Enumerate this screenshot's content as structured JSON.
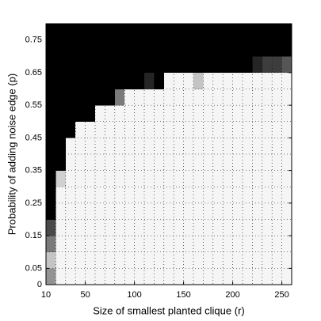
{
  "chart_data": {
    "type": "heatmap",
    "xlabel": "Size of smallest planted clique (r)",
    "ylabel": "Probability of adding noise edge (p)",
    "colormap": "gray",
    "xbins": [
      10,
      20,
      30,
      40,
      50,
      60,
      70,
      80,
      90,
      100,
      110,
      120,
      130,
      140,
      150,
      160,
      170,
      180,
      190,
      200,
      210,
      220,
      230,
      240,
      250,
      260
    ],
    "ybins": [
      0,
      0.05,
      0.1,
      0.15,
      0.2,
      0.25,
      0.3,
      0.35,
      0.4,
      0.45,
      0.5,
      0.55,
      0.6,
      0.65,
      0.7,
      0.75,
      0.8
    ],
    "values": [
      [
        0.6,
        1,
        1,
        1,
        1,
        1,
        1,
        1,
        1,
        1,
        1,
        1,
        1,
        1,
        1,
        1,
        1,
        1,
        1,
        1,
        1,
        1,
        1,
        1,
        1
      ],
      [
        0.8,
        1,
        1,
        1,
        1,
        1,
        1,
        1,
        1,
        1,
        1,
        1,
        1,
        1,
        1,
        1,
        1,
        1,
        1,
        1,
        1,
        1,
        1,
        1,
        1
      ],
      [
        0.5,
        1,
        1,
        1,
        1,
        1,
        1,
        1,
        1,
        1,
        1,
        1,
        1,
        1,
        1,
        1,
        1,
        1,
        1,
        1,
        1,
        1,
        1,
        1,
        1
      ],
      [
        0.3,
        1,
        1,
        1,
        1,
        1,
        1,
        1,
        1,
        1,
        1,
        1,
        1,
        1,
        1,
        1,
        1,
        1,
        1,
        1,
        1,
        1,
        1,
        1,
        1
      ],
      [
        0,
        1,
        1,
        1,
        1,
        1,
        1,
        1,
        1,
        1,
        1,
        1,
        1,
        1,
        1,
        1,
        1,
        1,
        1,
        1,
        1,
        1,
        1,
        1,
        1
      ],
      [
        0,
        1,
        1,
        1,
        1,
        1,
        1,
        1,
        1,
        1,
        1,
        1,
        1,
        1,
        1,
        1,
        1,
        1,
        1,
        1,
        1,
        1,
        1,
        1,
        1
      ],
      [
        0,
        0.85,
        1,
        1,
        1,
        1,
        1,
        1,
        1,
        1,
        1,
        1,
        1,
        1,
        1,
        1,
        1,
        1,
        1,
        1,
        1,
        1,
        1,
        1,
        1
      ],
      [
        0,
        0,
        1,
        1,
        1,
        1,
        1,
        1,
        1,
        1,
        1,
        1,
        1,
        1,
        1,
        1,
        1,
        1,
        1,
        1,
        1,
        1,
        1,
        1,
        1
      ],
      [
        0,
        0,
        1,
        1,
        1,
        1,
        1,
        1,
        1,
        1,
        1,
        1,
        1,
        1,
        1,
        1,
        1,
        1,
        1,
        1,
        1,
        1,
        1,
        1,
        1
      ],
      [
        0,
        0,
        0,
        1,
        1,
        1,
        1,
        1,
        1,
        1,
        1,
        1,
        1,
        1,
        1,
        1,
        1,
        1,
        1,
        1,
        1,
        1,
        1,
        1,
        1
      ],
      [
        0,
        0,
        0,
        0,
        0,
        1,
        1,
        1,
        1,
        1,
        1,
        1,
        1,
        1,
        1,
        1,
        1,
        1,
        1,
        1,
        1,
        1,
        1,
        1,
        1
      ],
      [
        0,
        0,
        0,
        0,
        0,
        0,
        0,
        0.5,
        1,
        1,
        1,
        1,
        1,
        1,
        1,
        1,
        1,
        1,
        1,
        1,
        1,
        1,
        1,
        1,
        1
      ],
      [
        0,
        0,
        0,
        0,
        0,
        0,
        0,
        0,
        0,
        0,
        0.15,
        0,
        1,
        1,
        1,
        0.8,
        1,
        1,
        1,
        1,
        1,
        1,
        1,
        1,
        1
      ],
      [
        0,
        0,
        0,
        0,
        0,
        0,
        0,
        0,
        0,
        0,
        0,
        0,
        0,
        0,
        0,
        0,
        0,
        0,
        0,
        0,
        0,
        0.15,
        0.25,
        0.25,
        0.35
      ],
      [
        0,
        0,
        0,
        0,
        0,
        0,
        0,
        0,
        0,
        0,
        0,
        0,
        0,
        0,
        0,
        0,
        0,
        0,
        0,
        0,
        0,
        0,
        0,
        0,
        0
      ],
      [
        0,
        0,
        0,
        0,
        0,
        0,
        0,
        0,
        0,
        0,
        0,
        0,
        0,
        0,
        0,
        0,
        0,
        0,
        0,
        0,
        0,
        0,
        0,
        0,
        0
      ]
    ],
    "xlim": [
      10,
      260
    ],
    "ylim": [
      0,
      0.8
    ],
    "xticks": [
      10,
      50,
      100,
      150,
      200,
      250
    ],
    "yticks": [
      0,
      0.05,
      0.15,
      0.25,
      0.35,
      0.45,
      0.55,
      0.65,
      0.75
    ],
    "grid": true
  }
}
